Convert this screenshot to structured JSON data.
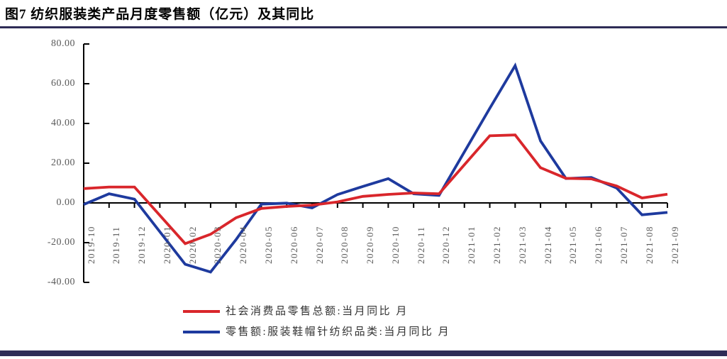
{
  "header": {
    "title": "图7 纺织服装类产品月度零售额（亿元）及其同比"
  },
  "colors": {
    "accent_navy": "#2e2c56",
    "axis_line": "#000000",
    "axis_text": "#595959",
    "series_red": "#d9262b",
    "series_blue": "#1e3a9e"
  },
  "chart_data": {
    "type": "line",
    "title": "图7 纺织服装类产品月度零售额（亿元）及其同比",
    "xlabel": "",
    "ylabel": "",
    "ylim": [
      -40,
      80
    ],
    "yticks": [
      80,
      60,
      40,
      20,
      0,
      -20,
      -40
    ],
    "ytick_decimals": 2,
    "grid": false,
    "legend_position": "bottom",
    "x_label_rotation_deg": 90,
    "categories": [
      "2019-10",
      "2019-11",
      "2019-12",
      "2020-01",
      "2020-02",
      "2020-03",
      "2020-04",
      "2020-05",
      "2020-06",
      "2020-07",
      "2020-08",
      "2020-09",
      "2020-10",
      "2020-11",
      "2020-12",
      "2021-01",
      "2021-02",
      "2021-03",
      "2021-04",
      "2021-05",
      "2021-06",
      "2021-07",
      "2021-08",
      "2021-09"
    ],
    "missing_data_note": "2020-01 and 2021-01 have no plotted point (Jan-Feb combined); line interpolates across the gap",
    "series": [
      {
        "name": "社会消费品零售总额:当月同比 月",
        "color": "#d9262b",
        "values": [
          7.2,
          8.0,
          8.0,
          null,
          -20.5,
          -15.8,
          -7.5,
          -2.8,
          -1.8,
          -1.1,
          0.5,
          3.3,
          4.3,
          5.0,
          4.6,
          null,
          33.8,
          34.2,
          17.7,
          12.4,
          12.1,
          8.5,
          2.5,
          4.4
        ]
      },
      {
        "name": "零售额:服装鞋帽针纺织品类:当月同比 月",
        "color": "#1e3a9e",
        "values": [
          -0.8,
          4.6,
          1.9,
          null,
          -30.9,
          -34.8,
          -18.5,
          -0.6,
          -0.1,
          -2.5,
          4.2,
          8.3,
          12.2,
          4.6,
          3.8,
          null,
          47.6,
          69.1,
          31.2,
          12.3,
          12.8,
          7.5,
          -6.0,
          -4.8
        ]
      }
    ]
  }
}
